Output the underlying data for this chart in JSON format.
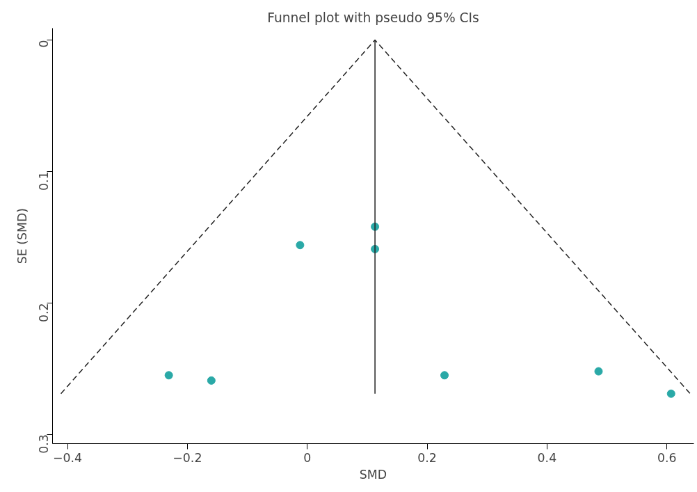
{
  "chart_data": {
    "type": "scatter",
    "title": "Funnel plot with pseudo 95% CIs",
    "xlabel": "SMD",
    "ylabel": "SE (SMD)",
    "xlim": [
      -0.425,
      0.645
    ],
    "xticks": [
      {
        "value": -0.4,
        "label": "−0.4"
      },
      {
        "value": -0.2,
        "label": "−0.2"
      },
      0,
      0.2,
      0.4,
      0.6
    ],
    "ylim": [
      0.307,
      -0.009
    ],
    "yticks": [
      0,
      0.1,
      0.2,
      0.3
    ],
    "grid": false,
    "series": [
      {
        "marker": "circle",
        "color": "#2aa9a7",
        "x": [
          0.113,
          0.113,
          -0.012,
          -0.231,
          -0.16,
          0.229,
          0.486,
          0.607
        ],
        "values": [
          0.142,
          0.159,
          0.156,
          0.255,
          0.259,
          0.255,
          0.252,
          0.269
        ]
      },
      {
        "type": "line",
        "marker": "none",
        "color": "#222222",
        "line_style": "dashed",
        "x": [
          -0.411,
          0.113,
          0.639
        ],
        "values": [
          0.269,
          0,
          0.269
        ]
      },
      {
        "type": "line",
        "marker": "none",
        "color": "#222222",
        "line_style": "solid",
        "x": [
          0.113,
          0.113
        ],
        "values": [
          0,
          0.269
        ]
      }
    ]
  }
}
